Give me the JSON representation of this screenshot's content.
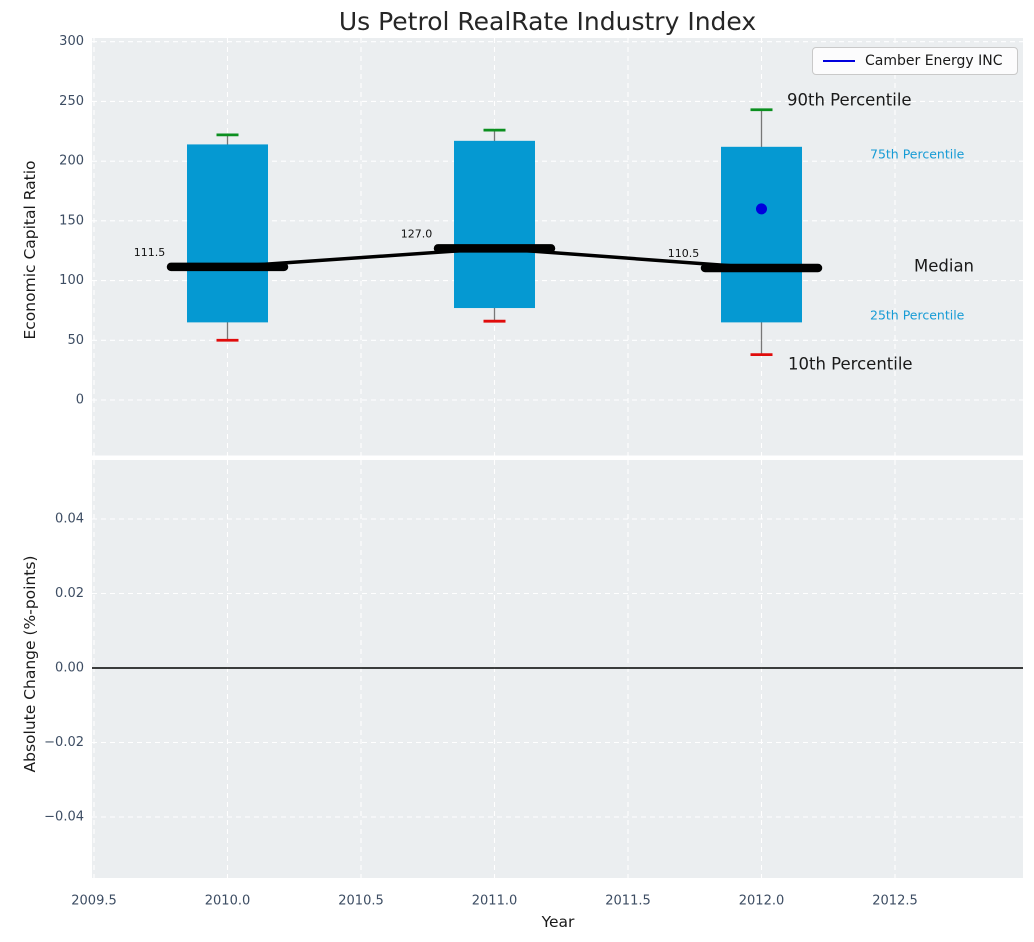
{
  "title": "Us Petrol RealRate Industry Index",
  "legend": {
    "label": "Camber Energy INC"
  },
  "colors": {
    "box_fill": "#0599d2",
    "median": "#000000",
    "whisker": "#777777",
    "cap_high": "#0b8f1f",
    "cap_low": "#e00b0b",
    "company": "#0000dd",
    "panel_bg": "#ebeef0",
    "grid": "#ffffff",
    "tick_text": "#3d4d63",
    "annotation_cyan": "#169bd5",
    "zero_line": "#000000"
  },
  "annotations": {
    "p90": "90th Percentile",
    "p75": "75th Percentile",
    "median": "Median",
    "p25": "25th Percentile",
    "p10": "10th Percentile"
  },
  "x_axis": {
    "label": "Year",
    "tick_labels": [
      "2009.5",
      "2010.0",
      "2010.5",
      "2011.0",
      "2011.5",
      "2012.0",
      "2012.5"
    ],
    "tick_values": [
      2009.5,
      2010,
      2010.5,
      2011,
      2011.5,
      2012,
      2012.5
    ]
  },
  "top_panel": {
    "ylabel": "Economic Capital Ratio",
    "ytick_labels": [
      "300",
      "250",
      "200",
      "150",
      "100",
      "50",
      "0"
    ],
    "ytick_values": [
      300,
      250,
      200,
      150,
      100,
      50,
      0
    ]
  },
  "bottom_panel": {
    "ylabel": "Absolute Change (%-points)",
    "ytick_labels": [
      "0.04",
      "0.02",
      "0.00",
      "−0.02",
      "−0.04"
    ],
    "ytick_values": [
      0.04,
      0.02,
      0,
      -0.02,
      -0.04
    ]
  },
  "chart_data": [
    {
      "type": "box",
      "title": "Us Petrol RealRate Industry Index",
      "xlabel": "Year",
      "ylabel": "Economic Capital Ratio",
      "xlim": [
        2009.49,
        2012.98
      ],
      "ylim": [
        -46,
        303
      ],
      "grid": true,
      "legend_position": "upper right",
      "categories": [
        2010,
        2011,
        2012
      ],
      "boxes": [
        {
          "year": 2010,
          "p10": 50,
          "p25": 65,
          "median": 111.5,
          "p75": 214,
          "p90": 222
        },
        {
          "year": 2011,
          "p10": 66,
          "p25": 77,
          "median": 127.0,
          "p75": 217,
          "p90": 226
        },
        {
          "year": 2012,
          "p10": 38,
          "p25": 65,
          "median": 110.5,
          "p75": 212,
          "p90": 243
        }
      ],
      "median_labels": [
        "111.5",
        "127.0",
        "110.5"
      ],
      "median_trend": {
        "x": [
          2010,
          2011,
          2012
        ],
        "values": [
          111.5,
          127.0,
          110.5
        ]
      },
      "company_series": {
        "name": "Camber Energy INC",
        "points": [
          {
            "year": 2012,
            "value": 160
          }
        ]
      }
    },
    {
      "type": "line",
      "xlabel": "Year",
      "ylabel": "Absolute Change (%-points)",
      "ylim": [
        -0.056,
        0.056
      ],
      "grid": true,
      "series": [],
      "zero_line": 0.0
    }
  ]
}
